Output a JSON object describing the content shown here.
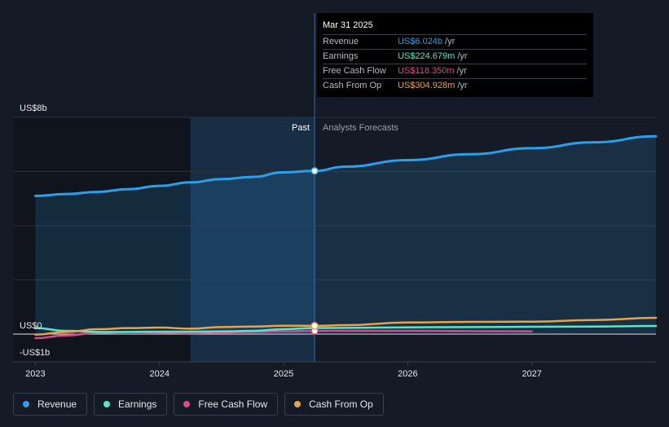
{
  "chart_data": {
    "type": "line",
    "y_axis_labels": [
      "US$8b",
      "US$0",
      "-US$1b"
    ],
    "ylim": [
      -1,
      8
    ],
    "x_ticks": [
      {
        "label": "2023",
        "value": 2023.0
      },
      {
        "label": "2024",
        "value": 2024.0
      },
      {
        "label": "2025",
        "value": 2025.0
      },
      {
        "label": "2026",
        "value": 2026.0
      },
      {
        "label": "2027",
        "value": 2027.0
      }
    ],
    "xlim": [
      2022.82,
      2028.0
    ],
    "past_label": "Past",
    "forecast_label": "Analysts Forecasts",
    "highlight_start": 2024.25,
    "divider_x": 2025.25,
    "series": [
      {
        "name": "Revenue",
        "color": "#2d9ee8",
        "fill": true,
        "x": [
          2023.0,
          2023.25,
          2023.5,
          2023.75,
          2024.0,
          2024.25,
          2024.5,
          2024.75,
          2025.0,
          2025.25,
          2025.5,
          2026.0,
          2026.5,
          2027.0,
          2027.5,
          2028.0
        ],
        "y": [
          5.1,
          5.17,
          5.25,
          5.35,
          5.47,
          5.6,
          5.72,
          5.8,
          5.97,
          6.024,
          6.18,
          6.42,
          6.64,
          6.86,
          7.08,
          7.3
        ]
      },
      {
        "name": "Earnings",
        "color": "#58e6c8",
        "fill": false,
        "x": [
          2023.0,
          2023.25,
          2023.5,
          2023.75,
          2024.0,
          2024.25,
          2024.5,
          2024.75,
          2025.0,
          2025.25,
          2025.5,
          2026.0,
          2026.5,
          2027.0,
          2027.5,
          2028.0
        ],
        "y": [
          0.22,
          0.12,
          0.08,
          0.08,
          0.09,
          0.09,
          0.1,
          0.12,
          0.18,
          0.224,
          0.23,
          0.25,
          0.26,
          0.27,
          0.28,
          0.3
        ]
      },
      {
        "name": "Free Cash Flow",
        "color": "#d94b8b",
        "fill": false,
        "x": [
          2023.0,
          2023.25,
          2023.5,
          2023.75,
          2024.0,
          2024.25,
          2024.5,
          2024.75,
          2025.0,
          2025.25,
          2025.5,
          2026.0,
          2026.5,
          2027.0
        ],
        "y": [
          -0.15,
          -0.05,
          0.05,
          0.08,
          0.06,
          0.04,
          0.06,
          0.08,
          0.1,
          0.118,
          0.12,
          0.12,
          0.11,
          0.1
        ]
      },
      {
        "name": "Cash From Op",
        "color": "#e8a44a",
        "fill": false,
        "x": [
          2023.0,
          2023.25,
          2023.5,
          2023.75,
          2024.0,
          2024.25,
          2024.5,
          2024.75,
          2025.0,
          2025.25,
          2025.5,
          2026.0,
          2026.5,
          2027.0,
          2027.5,
          2028.0
        ],
        "y": [
          -0.02,
          0.08,
          0.18,
          0.22,
          0.24,
          0.2,
          0.26,
          0.28,
          0.31,
          0.305,
          0.33,
          0.43,
          0.45,
          0.46,
          0.52,
          0.6
        ]
      }
    ],
    "tooltip": {
      "date": "Mar 31 2025",
      "rows": [
        {
          "name": "Revenue",
          "value": "US$6.024b",
          "unit": "/yr",
          "color": "#2d9ee8"
        },
        {
          "name": "Earnings",
          "value": "US$224.679m",
          "unit": "/yr",
          "color": "#58e6c8"
        },
        {
          "name": "Free Cash Flow",
          "value": "US$118.350m",
          "unit": "/yr",
          "color": "#d94b8b"
        },
        {
          "name": "Cash From Op",
          "value": "US$304.928m",
          "unit": "/yr",
          "color": "#e8a44a"
        }
      ]
    }
  },
  "legend": [
    {
      "label": "Revenue",
      "color": "#2d9ee8"
    },
    {
      "label": "Earnings",
      "color": "#58e6c8"
    },
    {
      "label": "Free Cash Flow",
      "color": "#d94b8b"
    },
    {
      "label": "Cash From Op",
      "color": "#e8a44a"
    }
  ]
}
